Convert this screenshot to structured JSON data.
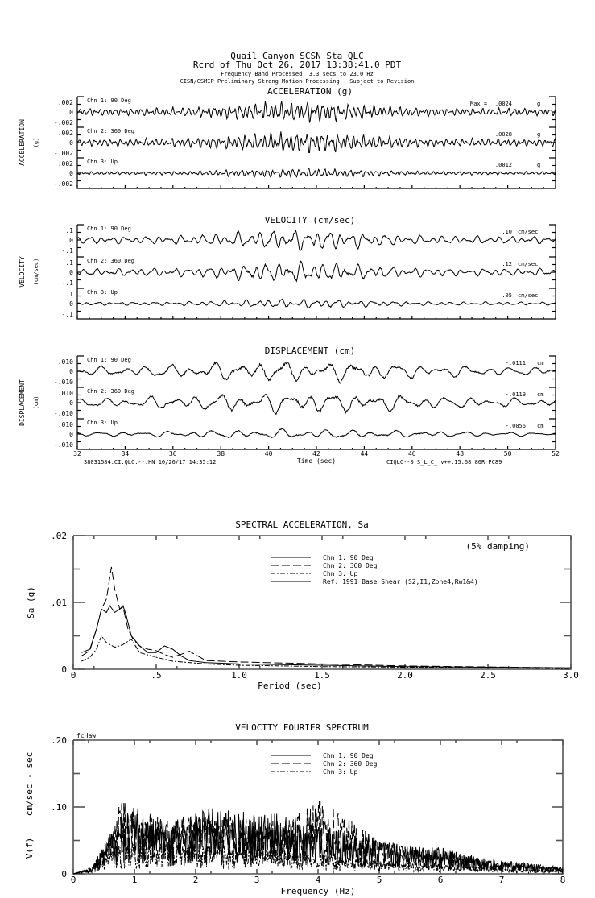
{
  "header": {
    "line1": "Quail Canyon    SCSN Sta QLC",
    "line2": "Rcrd of Thu Oct 26, 2017 13:38:41.0 PDT",
    "line3": "Frequency Band Processed: 3.3 secs to 23.0 Hz",
    "line4": "CISN/CSMIP Preliminary Strong Motion Processing - Subject to Revision"
  },
  "footer": {
    "left": "38031584.CI.QLC.--.HN 10/26/17 14:35:12",
    "right": "CIQLC--0  S_L_C_  v++.15.68.86R PC89"
  },
  "chart_data": [
    {
      "type": "line",
      "title": "ACCELERATION (g)",
      "ylabel": "ACCELERATION",
      "yunit": "(g)",
      "xlabel": "Time (sec)",
      "xlim": [
        32,
        52
      ],
      "xticks": [
        "32",
        "34",
        "36",
        "38",
        "40",
        "42",
        "44",
        "46",
        "48",
        "50",
        "52"
      ],
      "yticks": [
        ".002",
        "0",
        "-.002"
      ],
      "max_label": "Max =",
      "series": [
        {
          "name": "Chn 1: 90 Deg",
          "peak": ".0024",
          "unit": "g",
          "amp": 0.0024
        },
        {
          "name": "Chn 2: 360 Deg",
          "peak": ".0028",
          "unit": "g",
          "amp": 0.0028
        },
        {
          "name": "Chn 3: Up",
          "peak": ".0012",
          "unit": "g",
          "amp": 0.0012
        }
      ]
    },
    {
      "type": "line",
      "title": "VELOCITY (cm/sec)",
      "ylabel": "VELOCITY",
      "yunit": "(cm/sec)",
      "xlim": [
        32,
        52
      ],
      "yticks": [
        ".1",
        "0",
        "-.1"
      ],
      "series": [
        {
          "name": "Chn 1: 90 Deg",
          "peak": ".10",
          "unit": "cm/sec",
          "amp": 0.1
        },
        {
          "name": "Chn 2: 360 Deg",
          "peak": ".12",
          "unit": "cm/sec",
          "amp": 0.12
        },
        {
          "name": "Chn 3: Up",
          "peak": ".05",
          "unit": "cm/sec",
          "amp": 0.05
        }
      ]
    },
    {
      "type": "line",
      "title": "DISPLACEMENT (cm)",
      "ylabel": "DISPLACEMENT",
      "yunit": "(cm)",
      "xlim": [
        32,
        52
      ],
      "yticks": [
        ".010",
        "0",
        "-.010"
      ],
      "series": [
        {
          "name": "Chn 1: 90 Deg",
          "peak": "-.0111",
          "unit": "cm",
          "amp": 0.0111
        },
        {
          "name": "Chn 2: 360 Deg",
          "peak": "-.0119",
          "unit": "cm",
          "amp": 0.0119
        },
        {
          "name": "Chn 3: Up",
          "peak": "-.0056",
          "unit": "cm",
          "amp": 0.0056
        }
      ]
    },
    {
      "type": "line",
      "title": "SPECTRAL ACCELERATION, Sa",
      "note": "(5% damping)",
      "xlabel": "Period (sec)",
      "ylabel": "Sa (g)",
      "xlim": [
        0,
        3.0
      ],
      "ylim": [
        0,
        0.02
      ],
      "xticks": [
        "0",
        ".5",
        "1.0",
        "1.5",
        "2.0",
        "2.5",
        "3.0"
      ],
      "yticks": [
        "0",
        ".01",
        ".02"
      ],
      "legend": "top-right",
      "series": [
        {
          "name": "Chn 1: 90 Deg",
          "style": "solid",
          "x": [
            0.05,
            0.1,
            0.14,
            0.17,
            0.2,
            0.22,
            0.25,
            0.28,
            0.3,
            0.32,
            0.35,
            0.4,
            0.45,
            0.5,
            0.55,
            0.6,
            0.65,
            0.7,
            0.8,
            1.0,
            1.5,
            2.0,
            3.0
          ],
          "y": [
            0.0025,
            0.003,
            0.006,
            0.009,
            0.0085,
            0.0095,
            0.0085,
            0.009,
            0.0095,
            0.008,
            0.005,
            0.0035,
            0.0025,
            0.0025,
            0.0035,
            0.003,
            0.002,
            0.0013,
            0.001,
            0.0008,
            0.0006,
            0.0004,
            0.0002
          ]
        },
        {
          "name": "Chn 2: 360 Deg",
          "style": "dashed",
          "x": [
            0.05,
            0.1,
            0.14,
            0.17,
            0.2,
            0.23,
            0.25,
            0.28,
            0.3,
            0.33,
            0.36,
            0.4,
            0.45,
            0.5,
            0.55,
            0.6,
            0.7,
            0.8,
            1.0,
            1.5,
            2.0,
            3.0
          ],
          "y": [
            0.002,
            0.0028,
            0.006,
            0.009,
            0.0105,
            0.0153,
            0.012,
            0.009,
            0.0093,
            0.006,
            0.0045,
            0.0035,
            0.003,
            0.0028,
            0.0022,
            0.0018,
            0.0027,
            0.0013,
            0.0011,
            0.0008,
            0.0005,
            0.0002
          ]
        },
        {
          "name": "Chn 3: Up",
          "style": "dash-dot",
          "x": [
            0.05,
            0.1,
            0.14,
            0.17,
            0.2,
            0.25,
            0.28,
            0.3,
            0.35,
            0.4,
            0.5,
            0.6,
            0.8,
            1.0,
            1.5,
            2.0,
            3.0
          ],
          "y": [
            0.0012,
            0.0018,
            0.003,
            0.005,
            0.004,
            0.0033,
            0.0035,
            0.0037,
            0.0045,
            0.0025,
            0.0018,
            0.0012,
            0.0008,
            0.0006,
            0.0004,
            0.0003,
            0.0001
          ]
        },
        {
          "name": "Ref: 1991 Base Shear (S2,I1,Zone4,Rw1&4)",
          "style": "solid-thick",
          "x": [],
          "y": []
        }
      ]
    },
    {
      "type": "line",
      "title": "VELOCITY FOURIER SPECTRUM",
      "corner_label": "fcHaw",
      "xlabel": "Frequency (Hz)",
      "ylabel": "V(f)    cm/sec - sec",
      "xlim": [
        0,
        8
      ],
      "ylim": [
        0,
        0.2
      ],
      "xticks": [
        "0",
        "1",
        "2",
        "3",
        "4",
        "5",
        "6",
        "7",
        "8"
      ],
      "yticks": [
        "0",
        ".10",
        ".20"
      ],
      "legend": "top-center",
      "series": [
        {
          "name": "Chn 1: 90 Deg",
          "style": "solid",
          "envelope_f": [
            0,
            0.3,
            0.6,
            0.8,
            1.5,
            2.3,
            3.0,
            3.5,
            4.0,
            5.0,
            6.0,
            7.0,
            8.0
          ],
          "envelope_v": [
            0,
            0.01,
            0.06,
            0.1,
            0.08,
            0.1,
            0.09,
            0.09,
            0.07,
            0.05,
            0.04,
            0.02,
            0.01
          ]
        },
        {
          "name": "Chn 2: 360 Deg",
          "style": "dashed",
          "envelope_f": [
            0,
            0.3,
            0.6,
            0.8,
            1.5,
            2.3,
            3.0,
            3.5,
            4.1,
            5.0,
            6.0,
            7.0,
            8.0
          ],
          "envelope_v": [
            0,
            0.01,
            0.06,
            0.115,
            0.08,
            0.09,
            0.08,
            0.08,
            0.115,
            0.05,
            0.035,
            0.02,
            0.01
          ]
        },
        {
          "name": "Chn 3: Up",
          "style": "dash-dot",
          "envelope_f": [
            0,
            0.3,
            0.6,
            1.0,
            2.0,
            3.0,
            4.0,
            5.0,
            6.0,
            7.0,
            8.0
          ],
          "envelope_v": [
            0,
            0.01,
            0.04,
            0.05,
            0.045,
            0.04,
            0.03,
            0.02,
            0.015,
            0.01,
            0.005
          ]
        }
      ]
    }
  ]
}
